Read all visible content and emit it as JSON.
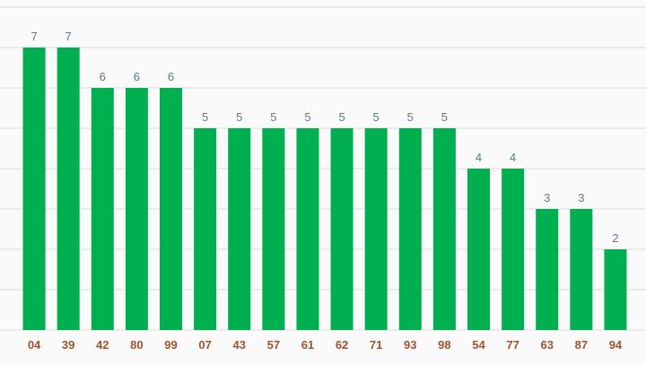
{
  "chart_data": {
    "type": "bar",
    "title": "",
    "xlabel": "",
    "ylabel": "",
    "categories": [
      "04",
      "39",
      "42",
      "80",
      "99",
      "07",
      "43",
      "57",
      "61",
      "62",
      "71",
      "93",
      "98",
      "54",
      "77",
      "63",
      "87",
      "94"
    ],
    "values": [
      7,
      7,
      6,
      6,
      6,
      5,
      5,
      5,
      5,
      5,
      5,
      5,
      5,
      4,
      4,
      3,
      3,
      2
    ],
    "ylim": [
      0,
      8
    ],
    "grid": true,
    "colors": {
      "bar": "#00b050",
      "value_label": "#5b7a86",
      "tick_label": "#a0522d",
      "grid": "#dcdcdc",
      "background": "#fafafa"
    }
  }
}
